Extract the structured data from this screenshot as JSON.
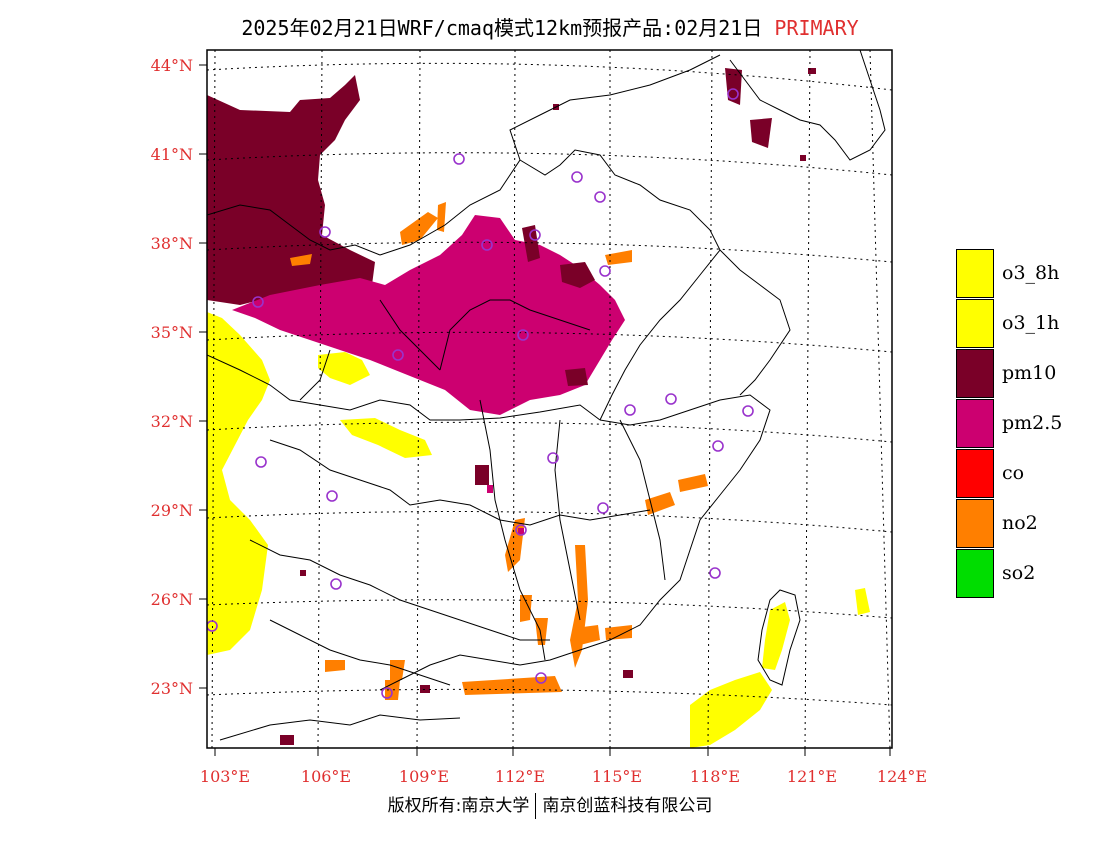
{
  "header": {
    "title": "2025年02月21日WRF/cmaq模式12km预报产品:02月21日",
    "tag": "PRIMARY"
  },
  "map": {
    "lat_labels": [
      "44°N",
      "41°N",
      "38°N",
      "35°N",
      "32°N",
      "29°N",
      "26°N",
      "23°N"
    ],
    "lon_labels": [
      "103°E",
      "106°E",
      "109°E",
      "112°E",
      "115°E",
      "118°E",
      "121°E",
      "124°E"
    ],
    "colors": {
      "o3_8h": "#ffff00",
      "o3_1h": "#ffff00",
      "pm10": "#7a0028",
      "pm25": "#cc0070",
      "co": "#ff0000",
      "no2": "#ff7f00",
      "so2": "#00dd00",
      "station": "#9933cc"
    }
  },
  "legend": {
    "items": [
      {
        "label": "o3_8h",
        "color": "#ffff00"
      },
      {
        "label": "o3_1h",
        "color": "#ffff00"
      },
      {
        "label": "pm10",
        "color": "#7a0028"
      },
      {
        "label": "pm2.5",
        "color": "#cc0070"
      },
      {
        "label": "co",
        "color": "#ff0000"
      },
      {
        "label": "no2",
        "color": "#ff7f00"
      },
      {
        "label": "so2",
        "color": "#00dd00"
      }
    ]
  },
  "footer": {
    "left": "版权所有:南京大学",
    "right": "南京创蓝科技有限公司"
  }
}
